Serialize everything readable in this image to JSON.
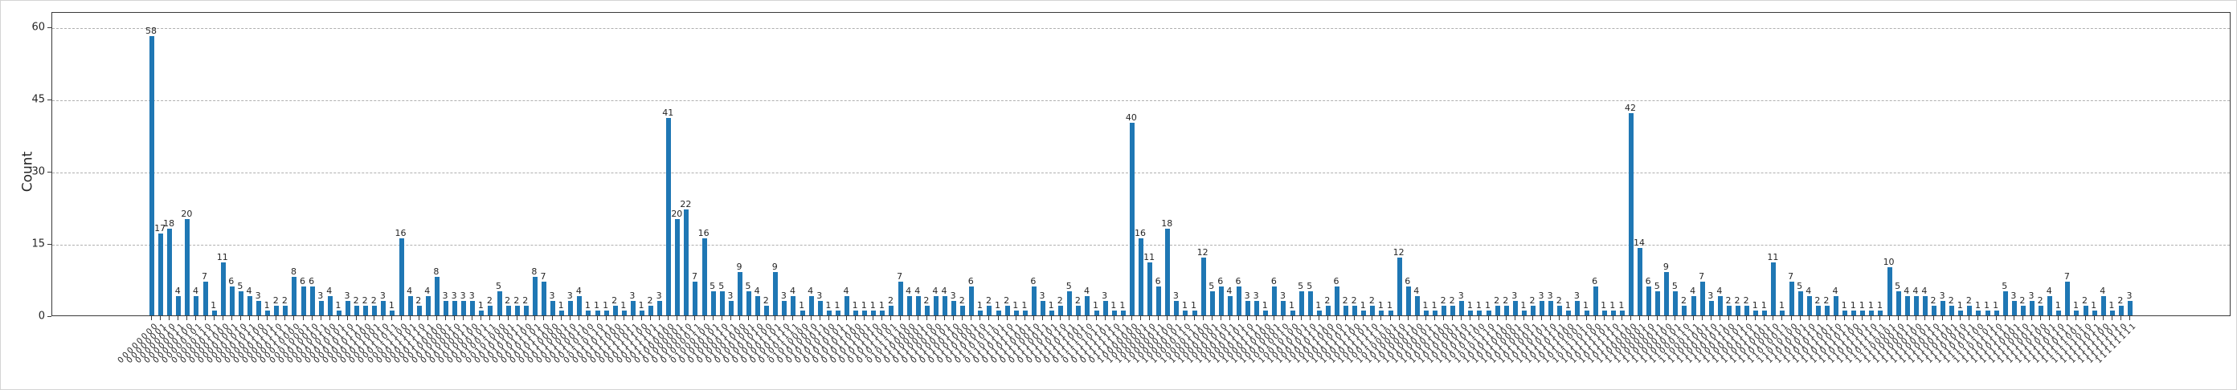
{
  "chart_data": {
    "type": "bar",
    "title": "",
    "xlabel": "",
    "ylabel": "Count",
    "yticks": [
      0,
      15,
      30,
      45,
      60
    ],
    "ylim": [
      0,
      63
    ],
    "grid": "horizontal-dashed",
    "legend": "none",
    "bar_color": "#1f77b4",
    "grid_color": "#b0b0b0",
    "xtick_rotation_deg": 45,
    "value_labels_shown": true,
    "categories": [
      "00000000",
      "00000001",
      "00000010",
      "00000011",
      "00000100",
      "00000101",
      "00000110",
      "00000111",
      "00001000",
      "00001001",
      "00001010",
      "00001011",
      "00001100",
      "00001101",
      "00001110",
      "00001111",
      "00010000",
      "00010001",
      "00010010",
      "00010011",
      "00010100",
      "00010101",
      "00010110",
      "00010111",
      "00011000",
      "00011001",
      "00011010",
      "00011011",
      "00011100",
      "00011101",
      "00011110",
      "00011111",
      "00100000",
      "00100001",
      "00100010",
      "00100011",
      "00100100",
      "00100101",
      "00100111",
      "00101000",
      "00101001",
      "00101011",
      "00101100",
      "00101101",
      "00101110",
      "00110000",
      "00110001",
      "00110010",
      "00110011",
      "00110100",
      "00110110",
      "00110111",
      "00111000",
      "00111001",
      "00111011",
      "00111100",
      "00111101",
      "00111111",
      "01000000",
      "01000001",
      "01000010",
      "01000011",
      "01000100",
      "01000101",
      "01000110",
      "01000111",
      "01001000",
      "01001001",
      "01001010",
      "01001100",
      "01001101",
      "01001110",
      "01001111",
      "01010000",
      "01010010",
      "01010011",
      "01010100",
      "01010101",
      "01010111",
      "01011000",
      "01011001",
      "01011010",
      "01011100",
      "01011101",
      "01011110",
      "01100000",
      "01100001",
      "01100010",
      "01100100",
      "01100101",
      "01100110",
      "01101000",
      "01101001",
      "01101010",
      "01101011",
      "01101101",
      "01101110",
      "01101111",
      "01110001",
      "01110010",
      "01110011",
      "01110101",
      "01110110",
      "01110111",
      "01111001",
      "01111010",
      "01111011",
      "01111101",
      "01111110",
      "01111111",
      "10000000",
      "10000001",
      "10000010",
      "10000011",
      "10000100",
      "10000101",
      "10000110",
      "10000111",
      "10001000",
      "10001001",
      "10001010",
      "10001011",
      "10001101",
      "10001110",
      "10001111",
      "10010000",
      "10010001",
      "10010010",
      "10010100",
      "10010101",
      "10010110",
      "10010111",
      "10011000",
      "10011010",
      "10011011",
      "10011100",
      "10011101",
      "10011110",
      "10011111",
      "10100001",
      "10100010",
      "10100011",
      "10100100",
      "10100101",
      "10100111",
      "10101000",
      "10101001",
      "10101010",
      "10101011",
      "10101100",
      "10101110",
      "10101111",
      "10110000",
      "10110001",
      "10110010",
      "10110011",
      "10110101",
      "10110110",
      "10110111",
      "10111000",
      "10111001",
      "10111010",
      "10111100",
      "10111101",
      "10111110",
      "10111111",
      "11000000",
      "11000001",
      "11000010",
      "11000011",
      "11000100",
      "11000101",
      "11000110",
      "11000111",
      "11001001",
      "11001010",
      "11001011",
      "11001100",
      "11001101",
      "11001110",
      "11001111",
      "11010001",
      "11010010",
      "11010011",
      "11010100",
      "11010101",
      "11010110",
      "11010111",
      "11011001",
      "11011010",
      "11011011",
      "11011100",
      "11011101",
      "11011110",
      "11011111",
      "11100001",
      "11100010",
      "11100011",
      "11100100",
      "11100101",
      "11100110",
      "11100111",
      "11101001",
      "11101010",
      "11101011",
      "11101100",
      "11101101",
      "11101110",
      "11101111",
      "11110001",
      "11110010",
      "11110011",
      "11110100",
      "11110101",
      "11110110",
      "11110111",
      "11111001",
      "11111010",
      "11111011",
      "11111100",
      "11111101",
      "11111110",
      "11111111"
    ],
    "values": [
      58,
      17,
      18,
      4,
      20,
      4,
      7,
      1,
      11,
      6,
      5,
      4,
      3,
      1,
      2,
      2,
      8,
      6,
      6,
      3,
      4,
      1,
      3,
      2,
      2,
      2,
      3,
      1,
      16,
      4,
      2,
      4,
      8,
      3,
      3,
      3,
      3,
      1,
      2,
      5,
      2,
      2,
      2,
      8,
      7,
      3,
      1,
      3,
      4,
      1,
      1,
      1,
      2,
      1,
      3,
      1,
      2,
      3,
      41,
      20,
      22,
      7,
      16,
      5,
      5,
      3,
      9,
      5,
      4,
      2,
      9,
      3,
      4,
      1,
      4,
      3,
      1,
      1,
      4,
      1,
      1,
      1,
      1,
      2,
      7,
      4,
      4,
      2,
      4,
      4,
      3,
      2,
      6,
      1,
      2,
      1,
      2,
      1,
      1,
      6,
      3,
      1,
      2,
      5,
      2,
      4,
      1,
      3,
      1,
      1,
      40,
      16,
      11,
      6,
      18,
      3,
      1,
      1,
      12,
      5,
      6,
      4,
      6,
      3,
      3,
      1,
      6,
      3,
      1,
      5,
      5,
      1,
      2,
      6,
      2,
      2,
      1,
      2,
      1,
      1,
      12,
      6,
      4,
      1,
      1,
      2,
      2,
      3,
      1,
      1,
      1,
      2,
      2,
      3,
      1,
      2,
      3,
      3,
      2,
      1,
      3,
      1,
      6,
      1,
      1,
      1,
      42,
      14,
      6,
      5,
      9,
      5,
      2,
      4,
      7,
      3,
      4,
      2,
      2,
      2,
      1,
      1,
      11,
      1,
      7,
      5,
      4,
      2,
      2,
      4,
      1,
      1,
      1,
      1,
      1,
      10,
      5,
      4,
      4,
      4,
      2,
      3,
      2,
      1,
      2,
      1,
      1,
      1,
      5,
      3,
      2,
      3,
      2,
      4,
      1,
      7,
      1,
      2,
      1,
      4,
      1,
      2,
      3
    ]
  }
}
